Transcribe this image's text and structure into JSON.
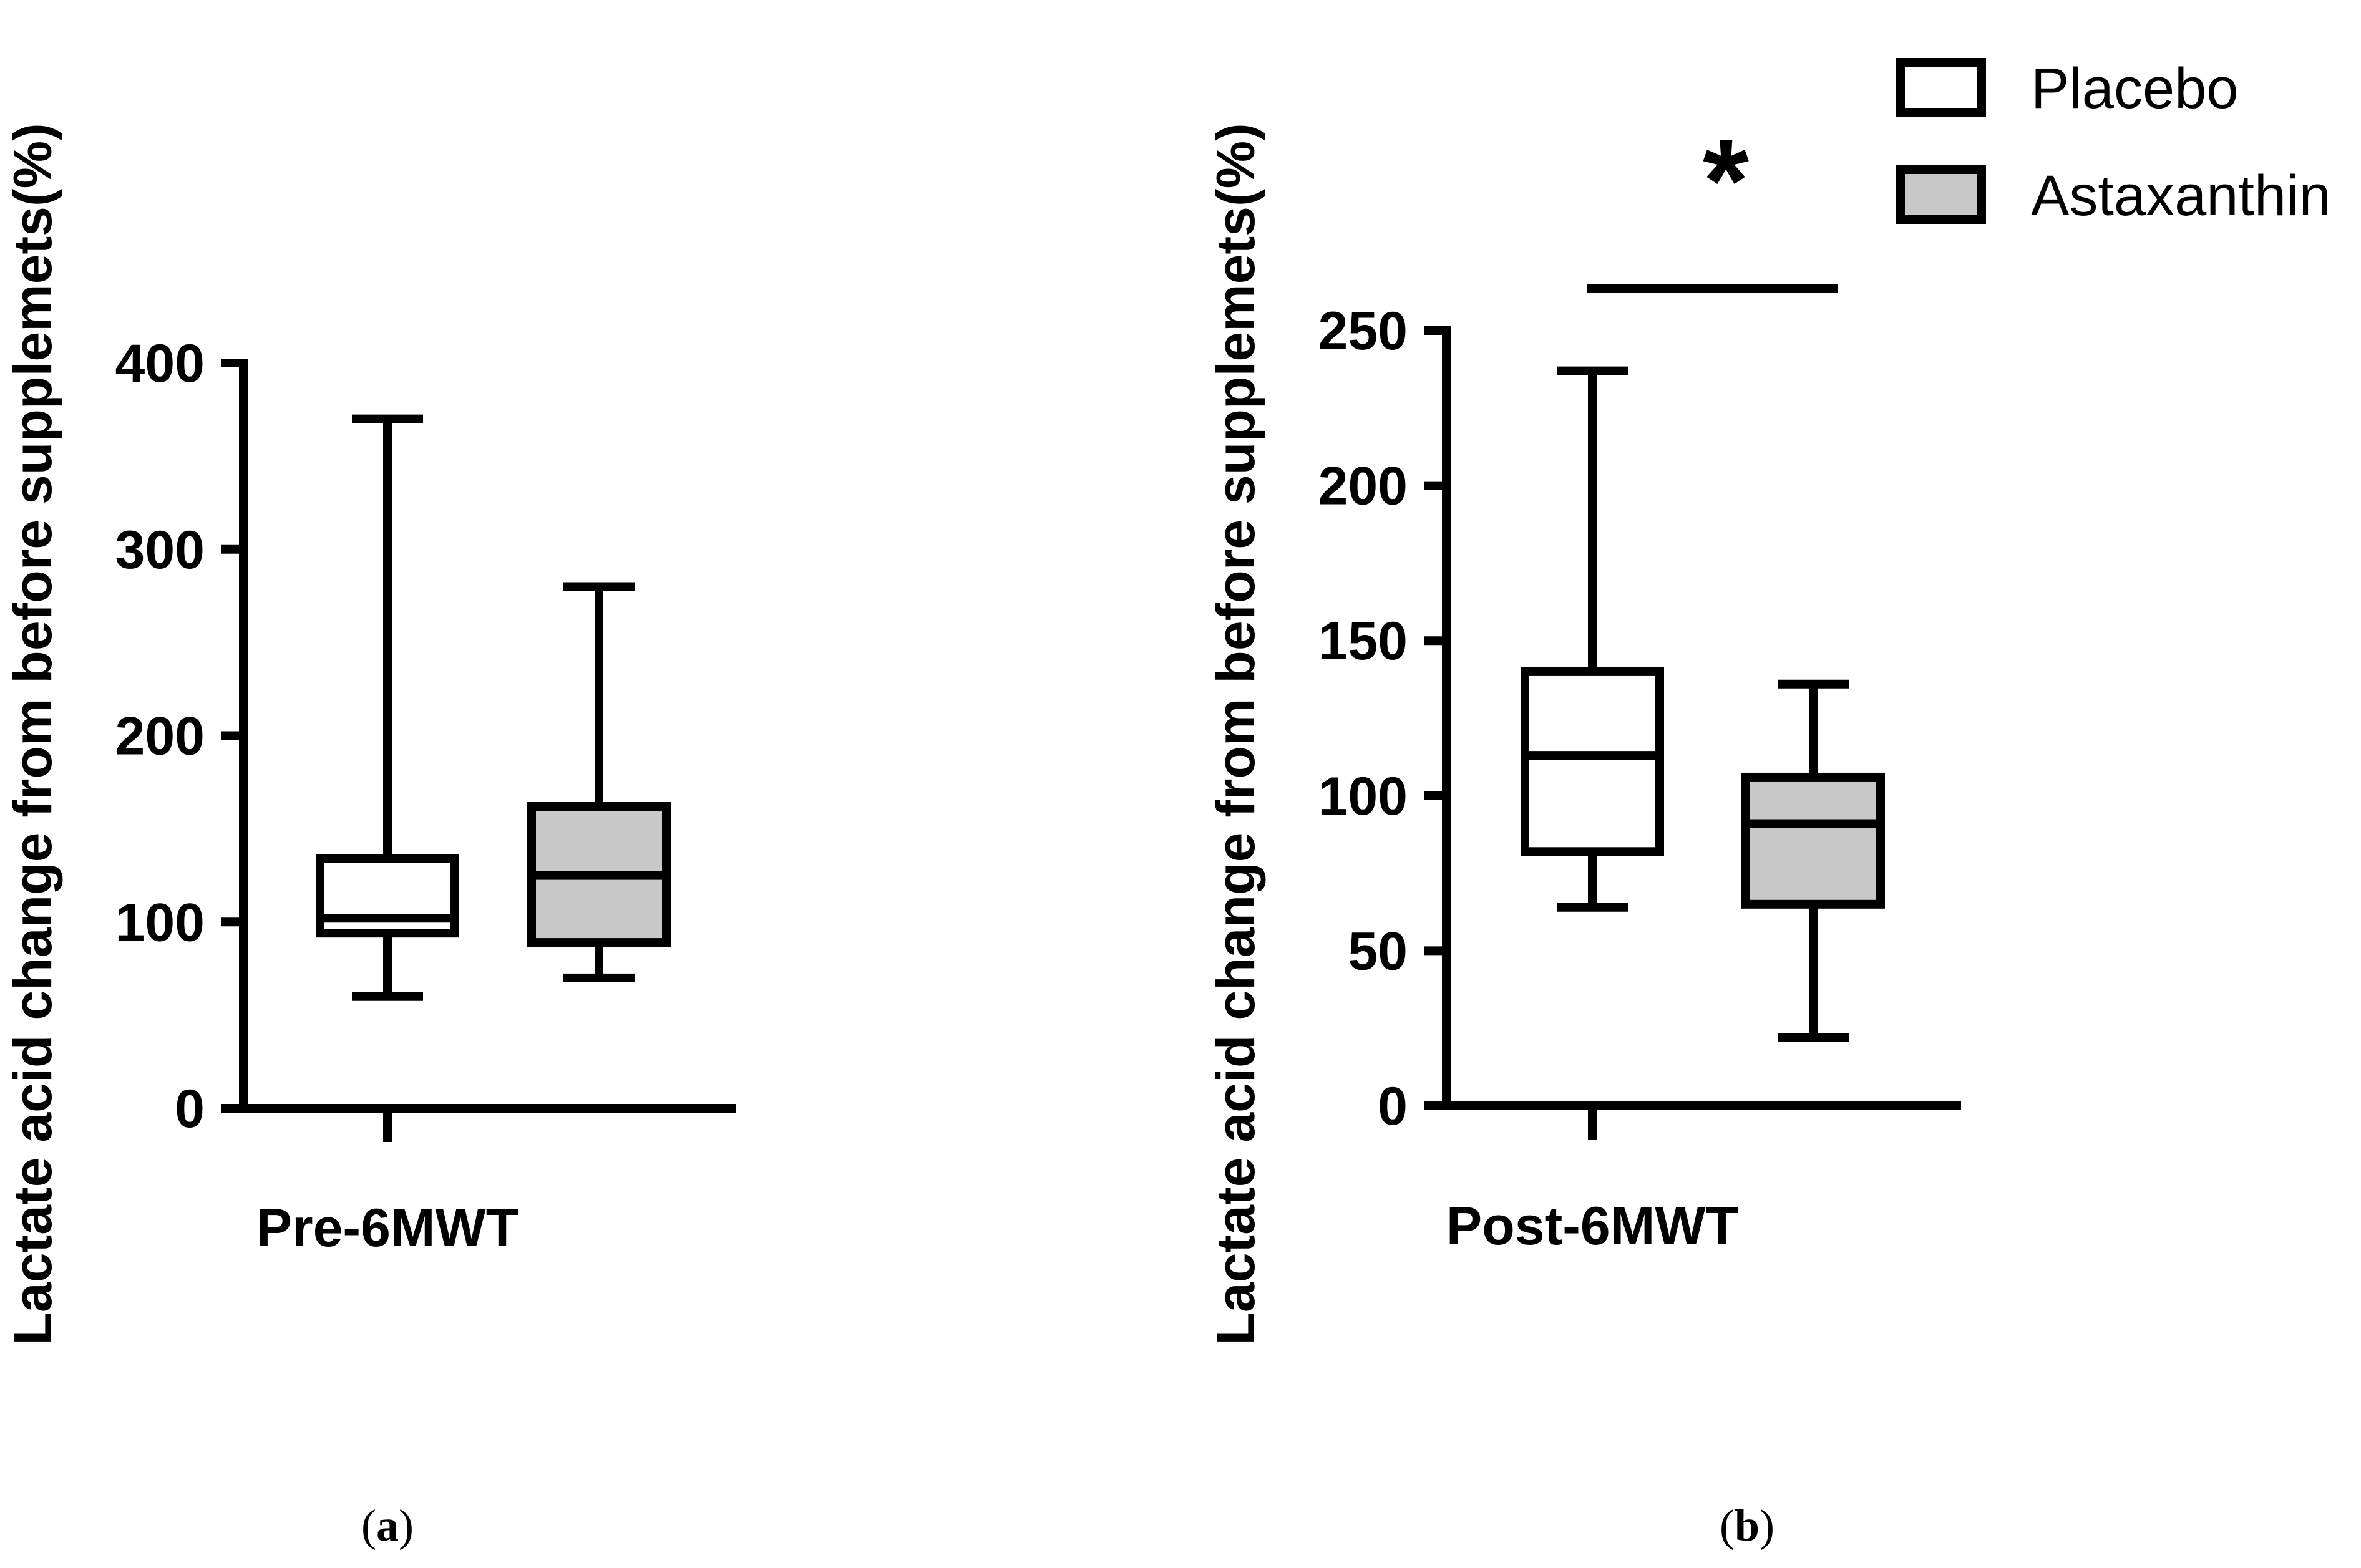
{
  "chart_data": [
    {
      "type": "box",
      "panel_label_letter": "a",
      "ylabel": "Lactate acid change from before supplemets(%)",
      "category": "Pre-6MWT",
      "ylim": [
        0,
        400
      ],
      "yticks": [
        0,
        100,
        200,
        300,
        400
      ],
      "series": [
        {
          "name": "Placebo",
          "min": 60,
          "q1": 94,
          "median": 102,
          "q3": 134,
          "max": 370
        },
        {
          "name": "Astaxanthin",
          "min": 70,
          "q1": 89,
          "median": 125,
          "q3": 162,
          "max": 280
        }
      ]
    },
    {
      "type": "box",
      "panel_label_letter": "b",
      "ylabel": "Lactate acid change from before supplemets(%)",
      "category": "Post-6MWT",
      "ylim": [
        0,
        250
      ],
      "yticks": [
        0,
        50,
        100,
        150,
        200,
        250
      ],
      "series": [
        {
          "name": "Placebo",
          "min": 64,
          "q1": 82,
          "median": 113,
          "q3": 140,
          "max": 237
        },
        {
          "name": "Astaxanthin",
          "min": 22,
          "q1": 65,
          "median": 91,
          "q3": 106,
          "max": 136
        }
      ],
      "significance": {
        "marker": "*",
        "between": [
          "Placebo",
          "Astaxanthin"
        ]
      }
    }
  ],
  "legend": [
    {
      "name": "Placebo",
      "fill": "#ffffff"
    },
    {
      "name": "Astaxanthin",
      "fill": "#c8c8c8"
    }
  ],
  "colors": {
    "stroke": "#000000",
    "placebo_fill": "#ffffff",
    "astaxanthin_fill": "#c8c8c8"
  }
}
